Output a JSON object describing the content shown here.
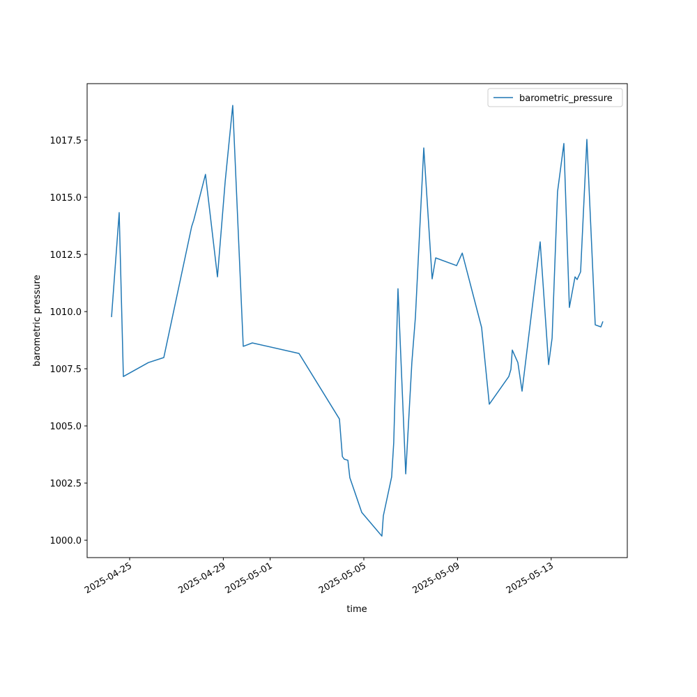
{
  "chart_data": {
    "type": "line",
    "x_label": "time",
    "y_label": "barometric pressure",
    "x": [
      "2025-04-24T05:25",
      "2025-04-24T13:18",
      "2025-04-24T17:34",
      "2025-04-25T19:12",
      "2025-04-26T11:00",
      "2025-04-27T15:36",
      "2025-04-27T17:45",
      "2025-04-28T05:45",
      "2025-04-28T18:00",
      "2025-04-29T01:55",
      "2025-04-29T09:40",
      "2025-04-29T20:25",
      "2025-04-30T05:45",
      "2025-05-02T05:35",
      "2025-05-03T23:00",
      "2025-05-04T02:00",
      "2025-05-04T04:00",
      "2025-05-04T07:40",
      "2025-05-04T09:40",
      "2025-05-04T21:50",
      "2025-05-05T18:30",
      "2025-05-05T20:00",
      "2025-05-06T04:30",
      "2025-05-06T06:40",
      "2025-05-06T11:00",
      "2025-05-06T18:55",
      "2025-05-07T01:15",
      "2025-05-07T04:50",
      "2025-05-07T13:25",
      "2025-05-07T22:00",
      "2025-05-08T01:40",
      "2025-05-08T23:05",
      "2025-05-09T04:50",
      "2025-05-10T00:45",
      "2025-05-10T08:35",
      "2025-05-11T04:35",
      "2025-05-11T06:45",
      "2025-05-11T08:10",
      "2025-05-11T13:50",
      "2025-05-11T18:10",
      "2025-05-12T12:45",
      "2025-05-12T21:20",
      "2025-05-13T00:55",
      "2025-05-13T06:30",
      "2025-05-13T13:00",
      "2025-05-13T18:40",
      "2025-05-14T00:25",
      "2025-05-14T02:35",
      "2025-05-14T06:10",
      "2025-05-14T12:35",
      "2025-05-14T21:10",
      "2025-05-15T02:55",
      "2025-05-15T05:00"
    ],
    "series": [
      {
        "name": "barometric_pressure",
        "color": "#1f77b4",
        "values": [
          1009.76,
          1014.33,
          1007.16,
          1007.77,
          1007.99,
          1013.72,
          1014.0,
          1016.0,
          1011.52,
          1015.7,
          1019.02,
          1008.48,
          1008.63,
          1008.17,
          1005.3,
          1003.66,
          1003.54,
          1003.5,
          1002.74,
          1001.22,
          1000.18,
          1001.07,
          1002.77,
          1004.27,
          1011.0,
          1002.9,
          1007.77,
          1009.76,
          1017.16,
          1011.43,
          1012.35,
          1012.01,
          1012.56,
          1009.3,
          1005.95,
          1007.16,
          1007.47,
          1008.32,
          1007.77,
          1006.52,
          1013.05,
          1007.68,
          1008.84,
          1015.24,
          1017.35,
          1010.18,
          1011.52,
          1011.4,
          1011.74,
          1017.53,
          1009.42,
          1009.33,
          1009.57
        ]
      }
    ],
    "xlim": [
      "2025-04-23T04:26",
      "2025-05-16T06:00"
    ],
    "xticks": [
      "2025-04-25",
      "2025-04-29",
      "2025-05-01",
      "2025-05-05",
      "2025-05-09",
      "2025-05-13"
    ],
    "ylim": [
      999.24,
      1019.97
    ],
    "yticks": [
      {
        "value": 1000,
        "label": "1000.0"
      },
      {
        "value": 1002.5,
        "label": "1002.5"
      },
      {
        "value": 1005,
        "label": "1005.0"
      },
      {
        "value": 1007.5,
        "label": "1007.5"
      },
      {
        "value": 1010,
        "label": "1010.0"
      },
      {
        "value": 1012.5,
        "label": "1012.5"
      },
      {
        "value": 1015,
        "label": "1015.0"
      },
      {
        "value": 1017.5,
        "label": "1017.5"
      }
    ],
    "legend": "upper right"
  }
}
